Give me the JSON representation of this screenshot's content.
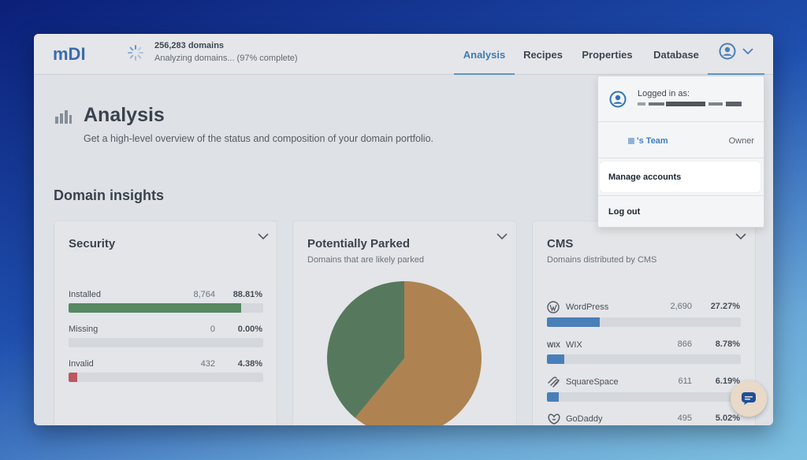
{
  "header": {
    "logo_text": "mDI",
    "domains_count": "256,283 domains",
    "domains_status": "Analyzing domains... (97% complete)",
    "nav": [
      {
        "label": "Analysis",
        "active": true
      },
      {
        "label": "Recipes",
        "active": false
      },
      {
        "label": "Properties",
        "active": false
      },
      {
        "label": "Database",
        "active": false
      }
    ],
    "user_icon": "user-circle-icon",
    "menu_icon": "chevron-down-icon"
  },
  "page": {
    "title": "Analysis",
    "subtitle": "Get a high-level overview of the status and composition of your domain portfolio.",
    "section_title": "Domain insights"
  },
  "cards": {
    "security": {
      "title": "Security",
      "rows": [
        {
          "label": "Installed",
          "count": "8,764",
          "pct": "88.81%",
          "fraction": 0.8881,
          "color": "#3f7f4a"
        },
        {
          "label": "Missing",
          "count": "0",
          "pct": "0.00%",
          "fraction": 0.0,
          "color": "#3f7f4a"
        },
        {
          "label": "Invalid",
          "count": "432",
          "pct": "4.38%",
          "fraction": 0.0438,
          "color": "#c2414b"
        }
      ]
    },
    "parked": {
      "title": "Potentially Parked",
      "subtitle": "Domains that are likely parked"
    },
    "cms": {
      "title": "CMS",
      "subtitle": "Domains distributed by CMS",
      "rows": [
        {
          "label": "WordPress",
          "icon": "wordpress-icon",
          "count": "2,690",
          "pct": "27.27%",
          "fraction": 0.2727,
          "color": "#2f73ba"
        },
        {
          "label": "WIX",
          "icon": "wix-icon",
          "icon_text": "WIX",
          "count": "866",
          "pct": "8.78%",
          "fraction": 0.0878,
          "color": "#2f73ba"
        },
        {
          "label": "SquareSpace",
          "icon": "squarespace-icon",
          "count": "611",
          "pct": "6.19%",
          "fraction": 0.0619,
          "color": "#2f73ba"
        },
        {
          "label": "GoDaddy",
          "icon": "godaddy-icon",
          "count": "495",
          "pct": "5.02%",
          "fraction": 0.0502,
          "color": "#2f73ba"
        }
      ]
    }
  },
  "dropdown": {
    "logged_in_label": "Logged in as:",
    "team_label": "'s Team",
    "team_role": "Owner",
    "manage_accounts": "Manage accounts",
    "log_out": "Log out"
  },
  "chart_data": {
    "type": "pie",
    "slices": [
      {
        "label": "",
        "fraction": 0.61,
        "color": "#b07835"
      },
      {
        "label": "",
        "fraction": 0.39,
        "color": "#3f6b44"
      }
    ]
  },
  "colors": {
    "accent": "#1e6fb8",
    "installed_bar": "#3f7f4a",
    "invalid_bar": "#c2414b",
    "cms_bar": "#2f73ba"
  }
}
